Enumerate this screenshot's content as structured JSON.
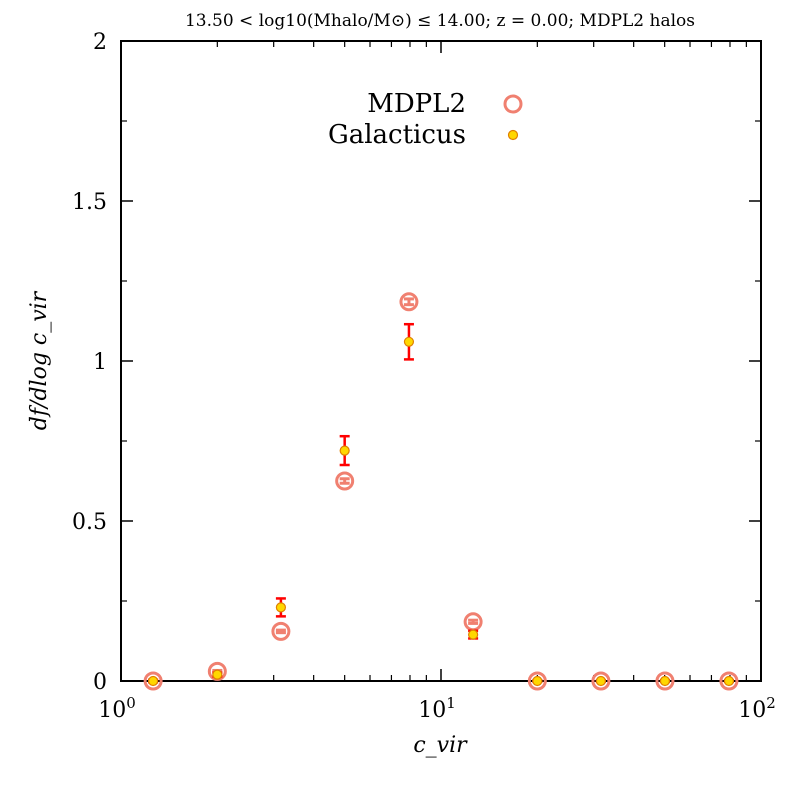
{
  "chart_data": {
    "type": "scatter",
    "title": "13.50 < log10(Mhalo/M⊙) ≤ 14.00; z = 0.00; MDPL2 halos",
    "xlabel": "c_vir",
    "ylabel": "df/dlog c_vir",
    "x_scale": "log",
    "xlim": [
      1,
      100
    ],
    "ylim": [
      0,
      2
    ],
    "x_ticks": [
      {
        "value": 1,
        "label": "10",
        "exp": "0"
      },
      {
        "value": 10,
        "label": "10",
        "exp": "1"
      },
      {
        "value": 100,
        "label": "10",
        "exp": "2"
      }
    ],
    "y_ticks": [
      {
        "value": 0,
        "label": "0"
      },
      {
        "value": 0.5,
        "label": "0.5"
      },
      {
        "value": 1,
        "label": "1"
      },
      {
        "value": 1.5,
        "label": "1.5"
      },
      {
        "value": 2,
        "label": "2"
      }
    ],
    "legend_position": "top-right",
    "series": [
      {
        "name": "MDPL2",
        "marker": "open-circle",
        "color": "#f08070",
        "x": [
          1.26,
          2.0,
          3.16,
          5.0,
          7.94,
          12.6,
          20.0,
          31.6,
          50.1,
          79.4
        ],
        "y": [
          0.0,
          0.03,
          0.155,
          0.625,
          1.185,
          0.185,
          0.0,
          0.0,
          0.0,
          0.0
        ],
        "yerr": [
          0.003,
          0.003,
          0.004,
          0.007,
          0.009,
          0.005,
          0.002,
          0.002,
          0.002,
          0.002
        ]
      },
      {
        "name": "Galacticus",
        "marker": "filled-dot",
        "color": "#ffd700",
        "edge_color": "#e08000",
        "error_color": "#ff0000",
        "x": [
          1.26,
          2.0,
          3.16,
          5.0,
          7.94,
          12.6,
          20.0,
          31.6,
          50.1,
          79.4
        ],
        "y": [
          0.0,
          0.02,
          0.23,
          0.72,
          1.06,
          0.145,
          0.0,
          0.0,
          0.0,
          0.0
        ],
        "yerr": [
          0.004,
          0.006,
          0.028,
          0.045,
          0.055,
          0.012,
          0.002,
          0.002,
          0.002,
          0.002
        ]
      }
    ]
  }
}
